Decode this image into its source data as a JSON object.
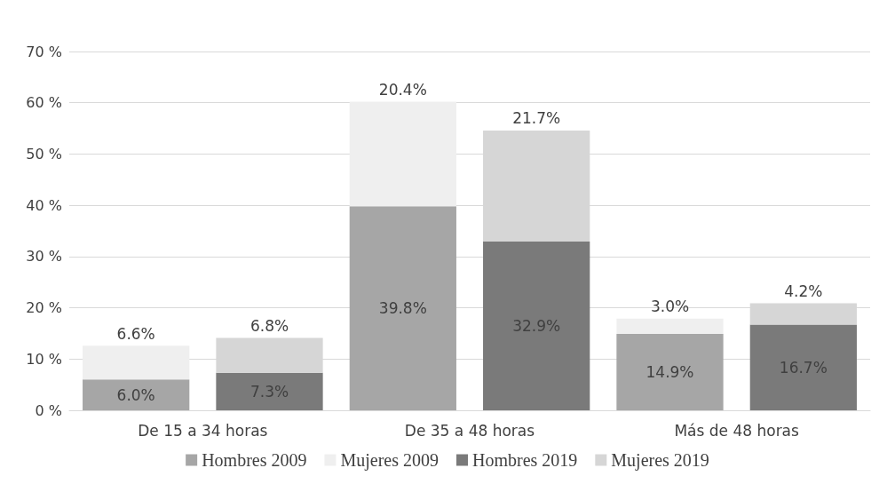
{
  "chart_data": {
    "type": "bar",
    "stacked": true,
    "categories": [
      "De 15 a 34 horas",
      null,
      "De 35 a 48 horas",
      null,
      "Más de 48 horas",
      null
    ],
    "series": [
      {
        "name": "Hombres 2009",
        "color": "#a6a6a6",
        "values": [
          6.0,
          null,
          39.8,
          null,
          14.9,
          null
        ],
        "value_labels": [
          "6.0%",
          null,
          "39.8%",
          null,
          "14.9%",
          null
        ]
      },
      {
        "name": "Mujeres 2009",
        "color": "#efefef",
        "values": [
          6.6,
          null,
          20.4,
          null,
          3.0,
          null
        ],
        "value_labels": [
          "6.6%",
          null,
          "20.4%",
          null,
          "3.0%",
          null
        ]
      },
      {
        "name": "Hombres 2019",
        "color": "#7a7a7a",
        "values": [
          null,
          7.3,
          null,
          32.9,
          null,
          16.7
        ],
        "value_labels": [
          null,
          "7.3%",
          null,
          "32.9%",
          null,
          "16.7%"
        ]
      },
      {
        "name": "Mujeres 2019",
        "color": "#d6d6d6",
        "values": [
          null,
          6.8,
          null,
          21.7,
          null,
          4.2
        ],
        "value_labels": [
          null,
          "6.8%",
          null,
          "21.7%",
          null,
          "4.2%"
        ]
      }
    ],
    "ylim": [
      0,
      70
    ],
    "yticks": [
      {
        "value": 0,
        "label": "0 %"
      },
      {
        "value": 10,
        "label": "10 %"
      },
      {
        "value": 20,
        "label": "20 %"
      },
      {
        "value": 30,
        "label": "30 %"
      },
      {
        "value": 40,
        "label": "40 %"
      },
      {
        "value": 50,
        "label": "50 %"
      },
      {
        "value": 60,
        "label": "60 %"
      },
      {
        "value": 70,
        "label": "70 %"
      }
    ],
    "grid": "y",
    "legend": "bottom"
  }
}
